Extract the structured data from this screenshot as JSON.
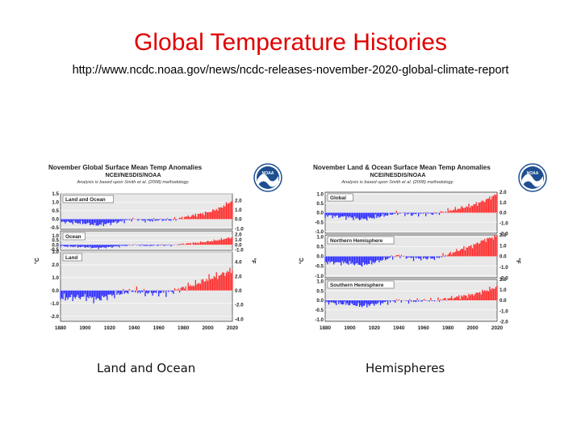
{
  "slide": {
    "title": "Global Temperature Histories",
    "url": "http://www.ncdc.noaa.gov/news/ncdc-releases-november-2020-global-climate-report",
    "captions": {
      "left": "Land and Ocean",
      "right": "Hemispheres"
    }
  },
  "colors": {
    "title": "#e00000",
    "positive": "#ff2a2a",
    "negative": "#2a2aff",
    "panel_bg": "#e8e8e8"
  },
  "chart_data": [
    {
      "type": "bar",
      "title": "November Global Surface Mean Temp Anomalies",
      "subtitle": "NCEI/NESDIS/NOAA",
      "note": "Analysis is based upon Smith et al. (2008) methodology.",
      "logo_text": "NOAA",
      "ylabel_left": "°C",
      "ylabel_right": "°F",
      "x_ticks": [
        "1880",
        "1900",
        "1920",
        "1940",
        "1960",
        "1980",
        "2000",
        "2020"
      ],
      "xlim": [
        1880,
        2020
      ],
      "panels": [
        {
          "name": "Land and Ocean",
          "ylim": [
            -0.6,
            1.5
          ],
          "c_ticks": [
            "1.5",
            "1.0",
            "0.5",
            "0.0",
            "-0.5"
          ],
          "c_values": [
            1.5,
            1.0,
            0.5,
            0.0,
            -0.5
          ],
          "f_ticks": [
            "2.0",
            "1.0",
            "0.0",
            "-1.0"
          ],
          "f_values": [
            2.0,
            1.0,
            0.0,
            -1.0
          ],
          "anchors": {
            "years": [
              1880,
              1900,
              1910,
              1920,
              1940,
              1950,
              1960,
              1970,
              1980,
              1990,
              2000,
              2010,
              2020
            ],
            "values": [
              -0.15,
              -0.25,
              -0.35,
              -0.25,
              0.0,
              -0.1,
              -0.05,
              -0.05,
              0.1,
              0.25,
              0.4,
              0.65,
              1.1
            ]
          }
        },
        {
          "name": "Ocean",
          "ylim": [
            -0.6,
            1.5
          ],
          "c_ticks": [
            "1.0",
            "0.5",
            "0.0",
            "-0.5"
          ],
          "c_values": [
            1.0,
            0.5,
            0.0,
            -0.5
          ],
          "f_ticks": [
            "2.0",
            "1.0",
            "0.0",
            "-1.0"
          ],
          "f_values": [
            2.0,
            1.0,
            0.0,
            -1.0
          ],
          "anchors": {
            "years": [
              1880,
              1900,
              1910,
              1920,
              1940,
              1950,
              1960,
              1970,
              1980,
              1990,
              2000,
              2010,
              2020
            ],
            "values": [
              -0.15,
              -0.25,
              -0.35,
              -0.25,
              0.0,
              -0.1,
              -0.05,
              -0.05,
              0.1,
              0.2,
              0.35,
              0.55,
              0.8
            ]
          }
        },
        {
          "name": "Land",
          "ylim": [
            -2.4,
            3.0
          ],
          "c_ticks": [
            "3.0",
            "2.0",
            "1.0",
            "0.0",
            "-1.0",
            "-2.0"
          ],
          "c_values": [
            3.0,
            2.0,
            1.0,
            0.0,
            -1.0,
            -2.0
          ],
          "f_ticks": [
            "4.0",
            "2.0",
            "0.0",
            "-2.0",
            "-4.0"
          ],
          "f_values": [
            4.0,
            2.0,
            0.0,
            -2.0,
            -4.0
          ],
          "anchors": {
            "years": [
              1880,
              1900,
              1910,
              1920,
              1940,
              1950,
              1960,
              1970,
              1980,
              1990,
              2000,
              2010,
              2020
            ],
            "values": [
              -0.6,
              -0.5,
              -0.7,
              -0.4,
              0.0,
              -0.2,
              -0.2,
              -0.1,
              0.2,
              0.5,
              0.9,
              1.2,
              1.6
            ]
          }
        }
      ]
    },
    {
      "type": "bar",
      "title": "November Land & Ocean Surface Mean Temp Anomalies",
      "subtitle": "NCEI/NESDIS/NOAA",
      "note": "Analysis is based upon Smith et al. (2008) methodology.",
      "logo_text": "NOAA",
      "ylabel_left": "°C",
      "ylabel_right": "°F",
      "x_ticks": [
        "1880",
        "1900",
        "1920",
        "1940",
        "1960",
        "1980",
        "2000",
        "2020"
      ],
      "xlim": [
        1880,
        2020
      ],
      "panels": [
        {
          "name": "Global",
          "ylim": [
            -1.1,
            1.1
          ],
          "c_ticks": [
            "1.0",
            "0.5",
            "0.0",
            "-0.5",
            "-1.0"
          ],
          "c_values": [
            1.0,
            0.5,
            0.0,
            -0.5,
            -1.0
          ],
          "f_ticks": [
            "2.0",
            "1.0",
            "0.0",
            "-1.0",
            "-2.0"
          ],
          "f_values": [
            2.0,
            1.0,
            0.0,
            -1.0,
            -2.0
          ],
          "anchors": {
            "years": [
              1880,
              1900,
              1910,
              1920,
              1940,
              1950,
              1960,
              1970,
              1980,
              1990,
              2000,
              2010,
              2020
            ],
            "values": [
              -0.15,
              -0.25,
              -0.35,
              -0.25,
              0.0,
              -0.1,
              -0.05,
              -0.05,
              0.1,
              0.25,
              0.4,
              0.65,
              1.0
            ]
          }
        },
        {
          "name": "Northern Hemisphere",
          "ylim": [
            -1.1,
            1.1
          ],
          "c_ticks": [
            "1.0",
            "0.5",
            "0.0",
            "-0.5",
            "-1.0"
          ],
          "c_values": [
            1.0,
            0.5,
            0.0,
            -0.5,
            -1.0
          ],
          "f_ticks": [
            "2.0",
            "1.0",
            "0.0",
            "-1.0",
            "-2.0"
          ],
          "f_values": [
            2.0,
            1.0,
            0.0,
            -1.0,
            -2.0
          ],
          "anchors": {
            "years": [
              1880,
              1900,
              1910,
              1920,
              1940,
              1950,
              1960,
              1970,
              1980,
              1990,
              2000,
              2010,
              2020
            ],
            "values": [
              -0.3,
              -0.35,
              -0.45,
              -0.3,
              0.05,
              -0.1,
              -0.1,
              -0.1,
              0.1,
              0.35,
              0.55,
              0.85,
              1.05
            ]
          }
        },
        {
          "name": "Southern Hemisphere",
          "ylim": [
            -1.1,
            1.1
          ],
          "c_ticks": [
            "1.0",
            "0.5",
            "0.0",
            "-0.5",
            "-1.0"
          ],
          "c_values": [
            1.0,
            0.5,
            0.0,
            -0.5,
            -1.0
          ],
          "f_ticks": [
            "2.0",
            "1.0",
            "0.0",
            "-1.0",
            "-2.0"
          ],
          "f_values": [
            2.0,
            1.0,
            0.0,
            -1.0,
            -2.0
          ],
          "anchors": {
            "years": [
              1880,
              1900,
              1910,
              1920,
              1940,
              1950,
              1960,
              1970,
              1980,
              1990,
              2000,
              2010,
              2020
            ],
            "values": [
              -0.1,
              -0.2,
              -0.3,
              -0.2,
              0.0,
              -0.05,
              0.0,
              0.0,
              0.1,
              0.2,
              0.3,
              0.5,
              0.7
            ]
          }
        }
      ]
    }
  ]
}
